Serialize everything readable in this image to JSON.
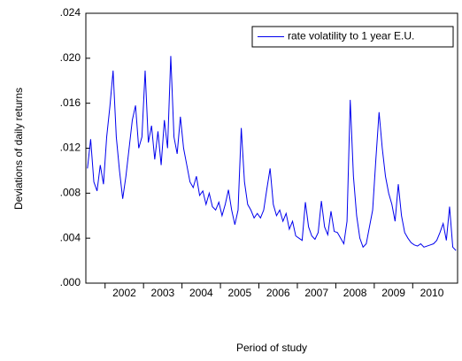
{
  "chart_data": {
    "type": "line",
    "y_label": "Deviations of daily returns",
    "x_label": "Period of study",
    "legend": "upper right",
    "categories": [
      null,
      null,
      null,
      null,
      null,
      null,
      null,
      null,
      null,
      null,
      null,
      null,
      "2002",
      null,
      null,
      null,
      null,
      null,
      null,
      null,
      null,
      null,
      null,
      null,
      "2003",
      null,
      null,
      null,
      null,
      null,
      null,
      null,
      null,
      null,
      null,
      null,
      "2004",
      null,
      null,
      null,
      null,
      null,
      null,
      null,
      null,
      null,
      null,
      null,
      "2005",
      null,
      null,
      null,
      null,
      null,
      null,
      null,
      null,
      null,
      null,
      null,
      "2006",
      null,
      null,
      null,
      null,
      null,
      null,
      null,
      null,
      null,
      null,
      null,
      "2007",
      null,
      null,
      null,
      null,
      null,
      null,
      null,
      null,
      null,
      null,
      null,
      "2008",
      null,
      null,
      null,
      null,
      null,
      null,
      null,
      null,
      null,
      null,
      null,
      "2009",
      null,
      null,
      null,
      null,
      null,
      null,
      null,
      null,
      null,
      null,
      null,
      "2010",
      null,
      null,
      null,
      null,
      null,
      null,
      null
    ],
    "series": [
      {
        "name": "rate volatility to 1 year E.U.",
        "color": "#0000ee",
        "values": [
          0.0102,
          0.0128,
          0.009,
          0.0082,
          0.0105,
          0.0088,
          0.013,
          0.0157,
          0.0189,
          0.013,
          0.01,
          0.0075,
          0.0095,
          0.012,
          0.0145,
          0.0158,
          0.012,
          0.013,
          0.0189,
          0.0125,
          0.014,
          0.011,
          0.0135,
          0.0105,
          0.0145,
          0.012,
          0.0202,
          0.013,
          0.0115,
          0.0148,
          0.012,
          0.0105,
          0.009,
          0.0085,
          0.0095,
          0.0078,
          0.0082,
          0.007,
          0.008,
          0.0068,
          0.0065,
          0.0072,
          0.006,
          0.007,
          0.0083,
          0.0065,
          0.0052,
          0.0065,
          0.0138,
          0.009,
          0.007,
          0.0065,
          0.0058,
          0.0062,
          0.0058,
          0.0065,
          0.0084,
          0.0102,
          0.007,
          0.006,
          0.0065,
          0.0055,
          0.0062,
          0.0048,
          0.0055,
          0.0042,
          0.004,
          0.0038,
          0.0072,
          0.005,
          0.0042,
          0.0039,
          0.0045,
          0.0073,
          0.005,
          0.0043,
          0.0064,
          0.0046,
          0.0045,
          0.004,
          0.0035,
          0.0055,
          0.0163,
          0.0095,
          0.006,
          0.004,
          0.0032,
          0.0035,
          0.005,
          0.0065,
          0.011,
          0.0152,
          0.012,
          0.0095,
          0.008,
          0.007,
          0.0055,
          0.0088,
          0.006,
          0.0045,
          0.004,
          0.0036,
          0.0034,
          0.0033,
          0.0035,
          0.0032,
          0.0033,
          0.0034,
          0.0035,
          0.0038,
          0.0045,
          0.0053,
          0.0038,
          0.0068,
          0.0032,
          0.0029
        ]
      }
    ],
    "ylim": [
      0,
      0.024
    ],
    "yticks": [
      {
        "value": 0,
        "label": ".000"
      },
      {
        "value": 0.004,
        "label": ".004"
      },
      {
        "value": 0.008,
        "label": ".008"
      },
      {
        "value": 0.012,
        "label": ".012"
      },
      {
        "value": 0.016,
        "label": ".016"
      },
      {
        "value": 0.02,
        "label": ".020"
      },
      {
        "value": 0.024,
        "label": ".024"
      }
    ]
  }
}
